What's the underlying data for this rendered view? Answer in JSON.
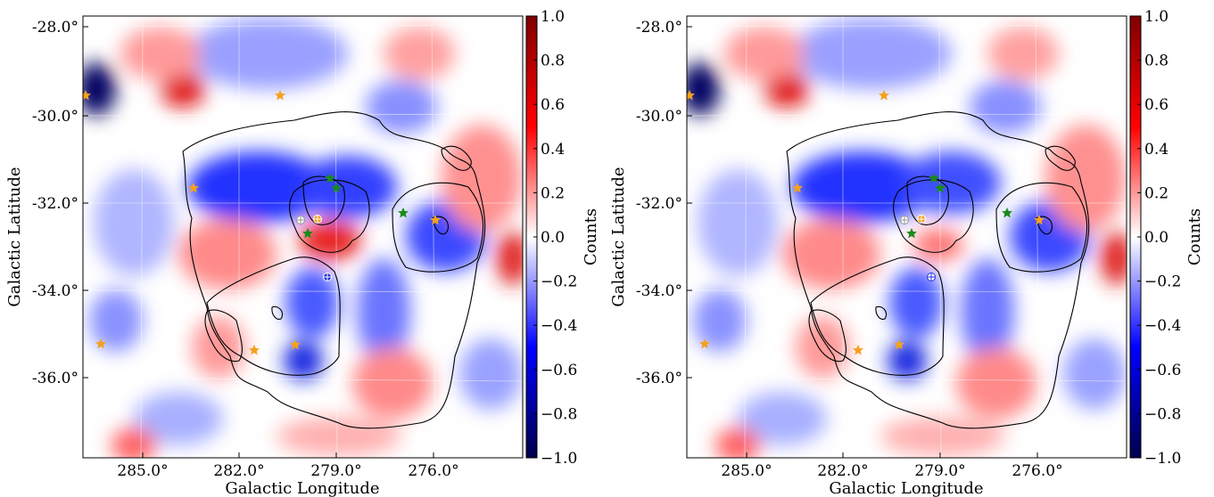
{
  "chart_data": [
    {
      "type": "heatmap",
      "panel": "left",
      "xlabel": "Galactic Longitude",
      "ylabel": "Galactic Latitude",
      "x_ticks": [
        "285.0°",
        "282.0°",
        "279.0°",
        "276.0°"
      ],
      "y_ticks": [
        "-28.0°",
        "-30.0°",
        "-32.0°",
        "-34.0°",
        "-36.0°"
      ],
      "colorbar": {
        "label": "Counts",
        "range": [
          -1.0,
          1.0
        ],
        "ticks": [
          "1.0",
          "0.8",
          "0.6",
          "0.4",
          "0.2",
          "0.0",
          "−0.2",
          "−0.4",
          "−0.6",
          "−0.8",
          "−1.0"
        ],
        "colormap": [
          "#00004c",
          "#0000ff",
          "#ffffff",
          "#ff0000",
          "#7f0000"
        ]
      },
      "markers": {
        "orange_star": "#f4a11e",
        "green_star": "#1a8a1a",
        "orange_circle": "#f4a11e",
        "white_circle": "#ffffff",
        "blue_circle": "#2233dd"
      },
      "grid": true
    },
    {
      "type": "heatmap",
      "panel": "right",
      "xlabel": "Galactic Longitude",
      "ylabel": "Galactic Latitude",
      "x_ticks": [
        "285.0°",
        "282.0°",
        "279.0°",
        "276.0°"
      ],
      "y_ticks": [
        "-28.0°",
        "-30.0°",
        "-32.0°",
        "-34.0°",
        "-36.0°"
      ],
      "colorbar": {
        "label": "Counts",
        "range": [
          -1.0,
          1.0
        ],
        "ticks": [
          "1.0",
          "0.8",
          "0.6",
          "0.4",
          "0.2",
          "0.0",
          "−0.2",
          "−0.4",
          "−0.6",
          "−0.8",
          "−1.0"
        ],
        "colormap": [
          "#00004c",
          "#0000ff",
          "#ffffff",
          "#ff0000",
          "#7f0000"
        ]
      },
      "grid": true
    }
  ]
}
